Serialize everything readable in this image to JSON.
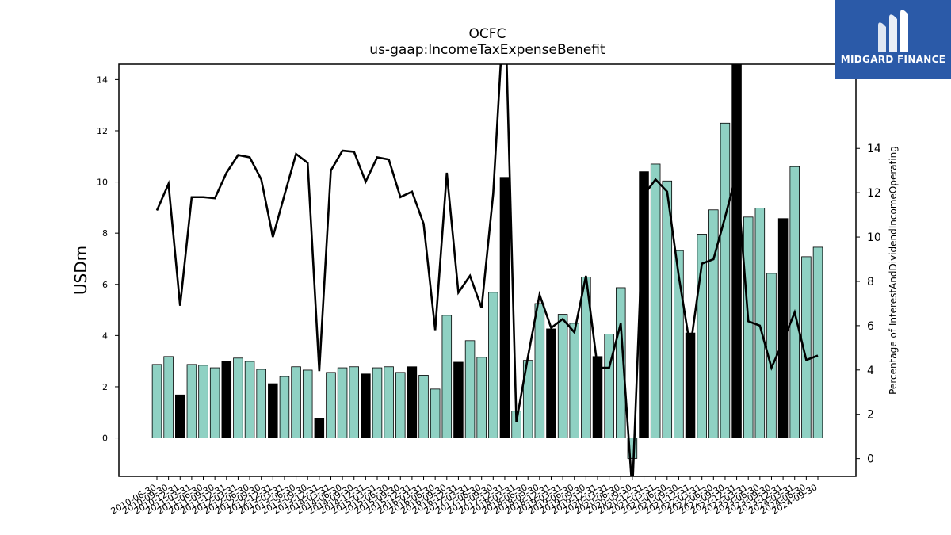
{
  "brand": {
    "name": "MIDGARD FINANCE",
    "logo_icon": "midgard-m-icon",
    "color": "#2b5aa8"
  },
  "chart_data": {
    "type": "bar",
    "title": "OCFC",
    "subtitle": "us-gaap:IncomeTaxExpenseBenefit",
    "ylabel": "USDm",
    "ylabel_right": "Percentage of InterestAndDividendIncomeOperating",
    "ylim": [
      -1.5,
      14.6
    ],
    "ylim_right": [
      -0.8,
      17.8
    ],
    "yticks": [
      0,
      2,
      4,
      6,
      8,
      10,
      12,
      14
    ],
    "yticks_right": [
      0,
      2,
      4,
      6,
      8,
      10,
      12,
      14
    ],
    "bar_color": "#8fd1c3",
    "highlight_color": "#000000",
    "grid": false,
    "categories": [
      "2010-06-30",
      "2010-09-30",
      "2010-12-31",
      "2011-03-31",
      "2011-06-30",
      "2011-09-30",
      "2011-12-31",
      "2012-03-31",
      "2012-06-30",
      "2012-09-30",
      "2012-12-31",
      "2013-03-31",
      "2013-06-30",
      "2013-09-30",
      "2013-12-31",
      "2014-03-31",
      "2014-06-30",
      "2014-09-30",
      "2014-12-31",
      "2015-03-31",
      "2015-06-30",
      "2015-09-30",
      "2015-12-31",
      "2016-03-31",
      "2016-06-30",
      "2016-09-30",
      "2016-12-31",
      "2017-03-31",
      "2017-06-30",
      "2017-09-30",
      "2017-12-31",
      "2018-03-31",
      "2018-06-30",
      "2018-09-30",
      "2018-12-31",
      "2019-03-31",
      "2019-06-30",
      "2019-09-30",
      "2019-12-31",
      "2020-03-31",
      "2020-06-30",
      "2020-09-30",
      "2020-12-31",
      "2021-03-31",
      "2021-06-30",
      "2021-09-30",
      "2021-12-31",
      "2022-03-31",
      "2022-06-30",
      "2022-09-30",
      "2022-12-31",
      "2023-03-31",
      "2023-06-30",
      "2023-09-30",
      "2023-12-31",
      "2024-03-31",
      "2024-06-30",
      "2024-09-30"
    ],
    "values": [
      2.87,
      3.18,
      1.68,
      2.87,
      2.84,
      2.74,
      2.98,
      3.12,
      2.99,
      2.68,
      2.12,
      2.4,
      2.78,
      2.65,
      0.76,
      2.56,
      2.74,
      2.78,
      2.5,
      2.74,
      2.78,
      2.56,
      2.78,
      2.45,
      1.91,
      4.79,
      2.96,
      3.8,
      3.15,
      5.69,
      10.18,
      1.05,
      3.03,
      5.25,
      4.26,
      4.83,
      4.48,
      6.29,
      3.18,
      4.06,
      5.87,
      -0.8,
      10.4,
      10.7,
      10.04,
      7.32,
      4.1,
      7.96,
      8.91,
      12.3,
      14.6,
      8.63,
      8.98,
      6.43,
      8.57,
      10.6,
      7.08,
      7.45
    ],
    "highlight": [
      false,
      false,
      true,
      false,
      false,
      false,
      true,
      false,
      false,
      false,
      true,
      false,
      false,
      false,
      true,
      false,
      false,
      false,
      true,
      false,
      false,
      false,
      true,
      false,
      false,
      false,
      true,
      false,
      false,
      false,
      true,
      false,
      false,
      false,
      true,
      false,
      false,
      false,
      true,
      false,
      false,
      false,
      true,
      false,
      false,
      false,
      true,
      false,
      false,
      false,
      true,
      false,
      false,
      false,
      true,
      false,
      false,
      false
    ],
    "line_series": {
      "values": [
        11.2,
        12.4,
        6.9,
        11.8,
        11.8,
        11.75,
        12.9,
        13.7,
        13.6,
        12.6,
        10.0,
        11.9,
        13.75,
        13.35,
        3.95,
        13.0,
        13.9,
        13.85,
        12.5,
        13.6,
        13.5,
        11.8,
        12.05,
        10.6,
        5.8,
        12.9,
        7.5,
        8.25,
        6.8,
        11.95,
        21.0,
        1.65,
        4.6,
        7.4,
        5.9,
        6.3,
        5.7,
        8.25,
        4.1,
        4.1,
        6.1,
        -1.5,
        11.9,
        12.6,
        12.05,
        8.25,
        5.0,
        8.8,
        9.0,
        10.9,
        12.9,
        6.2,
        6.0,
        4.1,
        5.3,
        6.6,
        4.45,
        4.65
      ]
    }
  }
}
